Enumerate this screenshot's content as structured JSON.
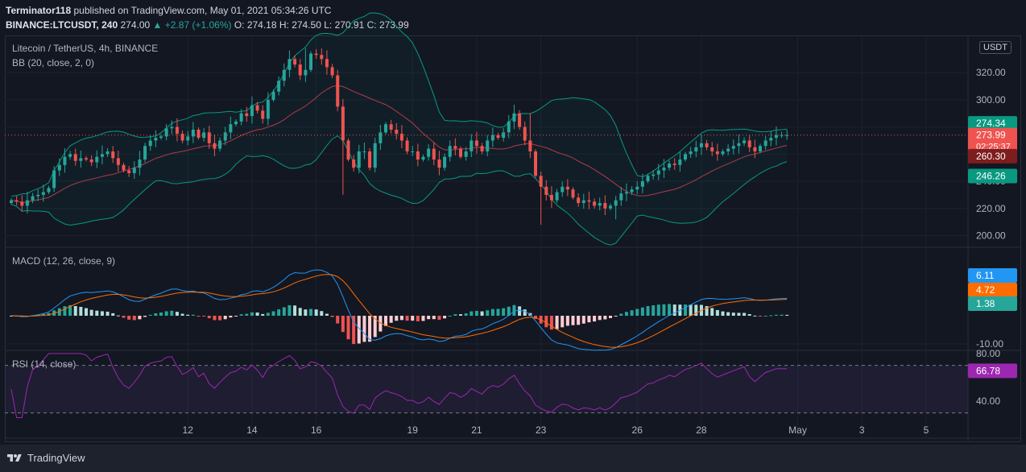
{
  "header": {
    "publisher": "Terminator118",
    "published_text": "published on TradingView.com, May 01, 2021 05:34:26 UTC",
    "symbol": "BINANCE:LTCUSDT, 240",
    "last": "274.00",
    "change": "+2.87 (+1.06%)",
    "ohlc": "O: 274.18 H: 274.50 L: 270.91 C: 273.99"
  },
  "legends": {
    "main": "Litecoin / TetherUS, 4h, BINANCE",
    "bb": "BB (20, close, 2, 0)",
    "macd": "MACD (12, 26, close, 9)",
    "rsi": "RSI (14, close)"
  },
  "currency_box": "USDT",
  "footer": {
    "brand": "TradingView"
  },
  "colors": {
    "bg": "#131722",
    "grid": "#1e222d",
    "up": "#26a69a",
    "down": "#ef5350",
    "bb_band": "#089981",
    "bb_basis": "#b23a48",
    "macd": "#2196f3",
    "signal": "#ff6d00",
    "rsi": "#9c27b0"
  },
  "chart_data": [
    {
      "type": "candlestick",
      "title": "Litecoin / TetherUS, 4h, BINANCE",
      "y_ticks": [
        200,
        220,
        240,
        260,
        280,
        300,
        320
      ],
      "y_tick_labels": [
        "200.00",
        "220.00",
        "240.00",
        "260.00",
        "280.00",
        "300.00",
        "320.00"
      ],
      "ylim": [
        192,
        345
      ],
      "x_tick_labels": [
        "12",
        "14",
        "16",
        "19",
        "21",
        "23",
        "26",
        "28",
        "May",
        "3",
        "5"
      ],
      "x_tick_index": [
        33,
        45,
        57,
        75,
        87,
        99,
        117,
        129,
        147,
        159,
        171
      ],
      "closes": [
        226,
        225,
        222,
        226,
        229,
        230,
        232,
        235,
        248,
        252,
        258,
        260,
        255,
        257,
        256,
        254,
        258,
        260,
        262,
        257,
        252,
        248,
        246,
        250,
        256,
        266,
        270,
        272,
        273,
        279,
        280,
        275,
        270,
        273,
        278,
        272,
        276,
        268,
        264,
        270,
        276,
        282,
        284,
        290,
        288,
        296,
        292,
        286,
        300,
        306,
        314,
        322,
        330,
        326,
        318,
        322,
        334,
        333,
        330,
        324,
        318,
        295,
        270,
        256,
        250,
        262,
        262,
        250,
        268,
        276,
        282,
        278,
        275,
        270,
        262,
        262,
        256,
        258,
        264,
        256,
        250,
        258,
        266,
        264,
        258,
        262,
        270,
        266,
        262,
        270,
        274,
        272,
        276,
        284,
        290,
        280,
        270,
        262,
        244,
        236,
        230,
        226,
        232,
        236,
        234,
        228,
        224,
        226,
        225,
        222,
        224,
        220,
        222,
        226,
        231,
        232,
        234,
        236,
        240,
        244,
        245,
        248,
        250,
        253,
        252,
        256,
        260,
        262,
        265,
        268,
        265,
        262,
        260,
        262,
        264,
        266,
        268,
        270,
        265,
        262,
        266,
        270,
        272,
        274,
        274,
        274
      ],
      "bb_upper_ends": [
        {
          "x": "10",
          "y": 248
        },
        {
          "x": "17",
          "y": 333
        },
        {
          "x": "21",
          "y": 272
        },
        {
          "x": "23",
          "y": 288
        },
        {
          "x": "26",
          "y": 245
        },
        {
          "x": "May",
          "y": 275
        }
      ],
      "last_price_label": "273.99",
      "countdown": "02:25:37",
      "labels": [
        {
          "value": 274.34,
          "text": "274.34",
          "color": "#089981"
        },
        {
          "value": 273.99,
          "text": "273.99",
          "color": "#ef5350"
        },
        {
          "value": 260.3,
          "text": "260.30",
          "color": "#7e1d1d"
        },
        {
          "value": 246.26,
          "text": "246.26",
          "color": "#089981"
        }
      ]
    },
    {
      "type": "macd",
      "title": "MACD (12, 26, close, 9)",
      "y_ticks": [
        -10
      ],
      "y_tick_labels": [
        "-10.00"
      ],
      "labels": [
        {
          "value": 6.11,
          "text": "6.11",
          "color": "#2196f3"
        },
        {
          "value": 4.72,
          "text": "4.72",
          "color": "#ff6d00"
        },
        {
          "value": 1.38,
          "text": "1.38",
          "color": "#26a69a"
        }
      ]
    },
    {
      "type": "rsi",
      "title": "RSI (14, close)",
      "y_ticks": [
        40,
        80
      ],
      "y_tick_labels": [
        "40.00",
        "80.00"
      ],
      "bands": [
        30,
        70
      ],
      "ylim": [
        25,
        82
      ],
      "label": {
        "value": 66.78,
        "text": "66.78",
        "color": "#9c27b0"
      }
    }
  ]
}
